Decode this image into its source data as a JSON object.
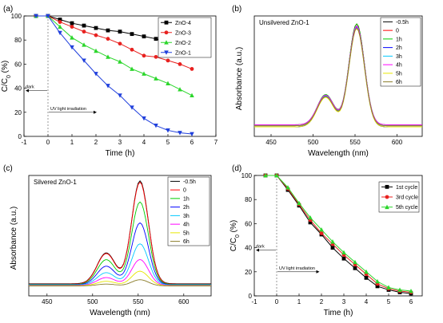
{
  "chart_data": [
    {
      "panel": "(a)",
      "type": "line",
      "xlabel": "Time (h)",
      "ylabel": "C/C0 (%)",
      "xlim": [
        -1,
        7
      ],
      "ylim": [
        0,
        100
      ],
      "xticks": [
        "-1",
        "0",
        "1",
        "2",
        "3",
        "4",
        "5",
        "6",
        "7"
      ],
      "yticks": [
        "0",
        "20",
        "40",
        "60",
        "80",
        "100"
      ],
      "annotations": [
        "dark",
        "UV light irradiation"
      ],
      "legend_position": "top-right",
      "x": [
        -0.5,
        0,
        0.5,
        1,
        1.5,
        2,
        2.5,
        3,
        3.5,
        4,
        4.5,
        5,
        5.5,
        6
      ],
      "series": [
        {
          "name": "ZnO-4",
          "color": "#000000",
          "marker": "square",
          "values": [
            100,
            100,
            97,
            94,
            92,
            90,
            88,
            87,
            85,
            83,
            81,
            78,
            75,
            71
          ]
        },
        {
          "name": "ZnO-3",
          "color": "#e8211f",
          "marker": "circle",
          "values": [
            100,
            100,
            95,
            91,
            87,
            84,
            81,
            77,
            72,
            67,
            66,
            63,
            60,
            56
          ]
        },
        {
          "name": "ZnO-2",
          "color": "#2bd62b",
          "marker": "triangle-up",
          "values": [
            100,
            100,
            91,
            82,
            76,
            71,
            66,
            62,
            56,
            52,
            48,
            44,
            39,
            34
          ]
        },
        {
          "name": "ZnO-1",
          "color": "#1f3fdc",
          "marker": "triangle-down",
          "values": [
            100,
            100,
            86,
            74,
            63,
            52,
            42,
            34,
            24,
            15,
            9,
            5,
            3,
            2
          ]
        }
      ]
    },
    {
      "panel": "(b)",
      "type": "line",
      "annotation": "Unsilvered ZnO-1",
      "xlabel": "Wavelength (nm)",
      "ylabel": "Absorbance (a.u.)",
      "xlim": [
        430,
        630
      ],
      "xticks": [
        "450",
        "500",
        "550",
        "600"
      ],
      "legend_position": "top-right",
      "series": [
        {
          "name": "-0.5h",
          "color": "#000000",
          "peak_height": 1.0
        },
        {
          "name": "0",
          "color": "#ff0000",
          "peak_height": 0.99
        },
        {
          "name": "1h",
          "color": "#00cc00",
          "peak_height": 0.98
        },
        {
          "name": "2h",
          "color": "#0000ff",
          "peak_height": 0.975
        },
        {
          "name": "3h",
          "color": "#00c8ff",
          "peak_height": 0.97
        },
        {
          "name": "4h",
          "color": "#ff00ff",
          "peak_height": 0.96
        },
        {
          "name": "5h",
          "color": "#e6e600",
          "peak_height": 0.955
        },
        {
          "name": "6h",
          "color": "#8b7d2a",
          "peak_height": 0.95
        }
      ]
    },
    {
      "panel": "(c)",
      "type": "line",
      "annotation": "Silvered ZnO-1",
      "xlabel": "Wavelength (nm)",
      "ylabel": "Absorbance (a.u.)",
      "xlim": [
        430,
        630
      ],
      "xticks": [
        "450",
        "500",
        "550",
        "600"
      ],
      "legend_position": "top-right",
      "series": [
        {
          "name": "-0.5h",
          "color": "#000000",
          "peak_height": 1.0
        },
        {
          "name": "0",
          "color": "#ff0000",
          "peak_height": 0.99
        },
        {
          "name": "1h",
          "color": "#00cc00",
          "peak_height": 0.8
        },
        {
          "name": "2h",
          "color": "#0000ff",
          "peak_height": 0.6
        },
        {
          "name": "3h",
          "color": "#00c8ff",
          "peak_height": 0.4
        },
        {
          "name": "4h",
          "color": "#ff00ff",
          "peak_height": 0.25
        },
        {
          "name": "5h",
          "color": "#e6e600",
          "peak_height": 0.14
        },
        {
          "name": "6h",
          "color": "#8b7d2a",
          "peak_height": 0.06
        }
      ]
    },
    {
      "panel": "(d)",
      "type": "line",
      "xlabel": "Time (h)",
      "ylabel": "C/C0 (%)",
      "xlim": [
        -1,
        6.5
      ],
      "ylim": [
        0,
        100
      ],
      "xticks": [
        "-1",
        "0",
        "1",
        "2",
        "3",
        "4",
        "5",
        "6"
      ],
      "yticks": [
        "0",
        "20",
        "40",
        "60",
        "80",
        "100"
      ],
      "annotations": [
        "dark",
        "UV light irradiation"
      ],
      "legend_position": "top-right",
      "x": [
        -0.5,
        0,
        0.5,
        1,
        1.5,
        2,
        2.5,
        3,
        3.5,
        4,
        4.5,
        5,
        5.5,
        6
      ],
      "series": [
        {
          "name": "1st cycle",
          "color": "#000000",
          "marker": "square",
          "values": [
            100,
            100,
            88,
            75,
            61,
            51,
            40,
            31,
            23,
            15,
            8,
            5,
            3,
            2
          ]
        },
        {
          "name": "3rd cycle",
          "color": "#e8211f",
          "marker": "circle",
          "values": [
            100,
            100,
            89,
            76,
            63,
            52,
            43,
            34,
            26,
            18,
            10,
            6,
            4,
            3
          ]
        },
        {
          "name": "5th cycle",
          "color": "#2bd62b",
          "marker": "triangle-up",
          "values": [
            100,
            100,
            90,
            77,
            65,
            55,
            45,
            36,
            28,
            20,
            12,
            7,
            5,
            4
          ]
        }
      ]
    }
  ]
}
